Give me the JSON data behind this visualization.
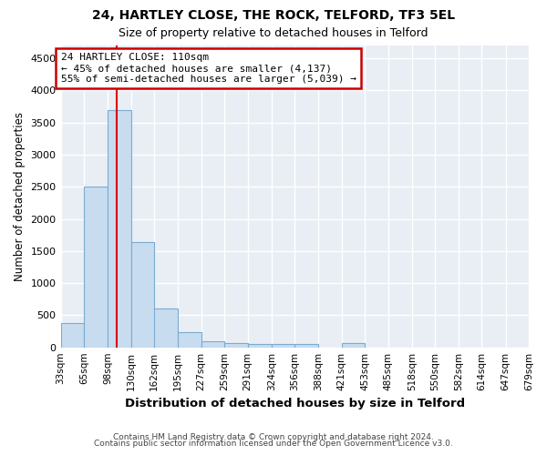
{
  "title1": "24, HARTLEY CLOSE, THE ROCK, TELFORD, TF3 5EL",
  "title2": "Size of property relative to detached houses in Telford",
  "xlabel": "Distribution of detached houses by size in Telford",
  "ylabel": "Number of detached properties",
  "footnote1": "Contains HM Land Registry data © Crown copyright and database right 2024.",
  "footnote2": "Contains public sector information licensed under the Open Government Licence v3.0.",
  "annotation_line1": "24 HARTLEY CLOSE: 110sqm",
  "annotation_line2": "← 45% of detached houses are smaller (4,137)",
  "annotation_line3": "55% of semi-detached houses are larger (5,039) →",
  "property_size": 110,
  "bar_left_edges": [
    33,
    65,
    98,
    130,
    162,
    195,
    227,
    259,
    291,
    324,
    356,
    388,
    421,
    453,
    485,
    518,
    550,
    582,
    614,
    647
  ],
  "bar_widths": [
    32,
    33,
    32,
    32,
    33,
    32,
    32,
    32,
    33,
    32,
    32,
    33,
    32,
    32,
    33,
    32,
    32,
    32,
    33,
    32
  ],
  "bar_heights": [
    380,
    2500,
    3700,
    1640,
    600,
    240,
    100,
    60,
    50,
    50,
    50,
    0,
    60,
    0,
    0,
    0,
    0,
    0,
    0,
    0
  ],
  "bar_color": "#c8dcf0",
  "bar_edge_color": "#7aabcf",
  "vline_x": 110,
  "vline_color": "#dd0000",
  "annotation_box_color": "#cc0000",
  "bg_color": "#e8eef4",
  "grid_color": "#ffffff",
  "fig_bg_color": "#ffffff",
  "ylim": [
    0,
    4700
  ],
  "yticks": [
    0,
    500,
    1000,
    1500,
    2000,
    2500,
    3000,
    3500,
    4000,
    4500
  ],
  "tick_labels": [
    "33sqm",
    "65sqm",
    "98sqm",
    "130sqm",
    "162sqm",
    "195sqm",
    "227sqm",
    "259sqm",
    "291sqm",
    "324sqm",
    "356sqm",
    "388sqm",
    "421sqm",
    "453sqm",
    "485sqm",
    "518sqm",
    "550sqm",
    "582sqm",
    "614sqm",
    "647sqm",
    "679sqm"
  ]
}
